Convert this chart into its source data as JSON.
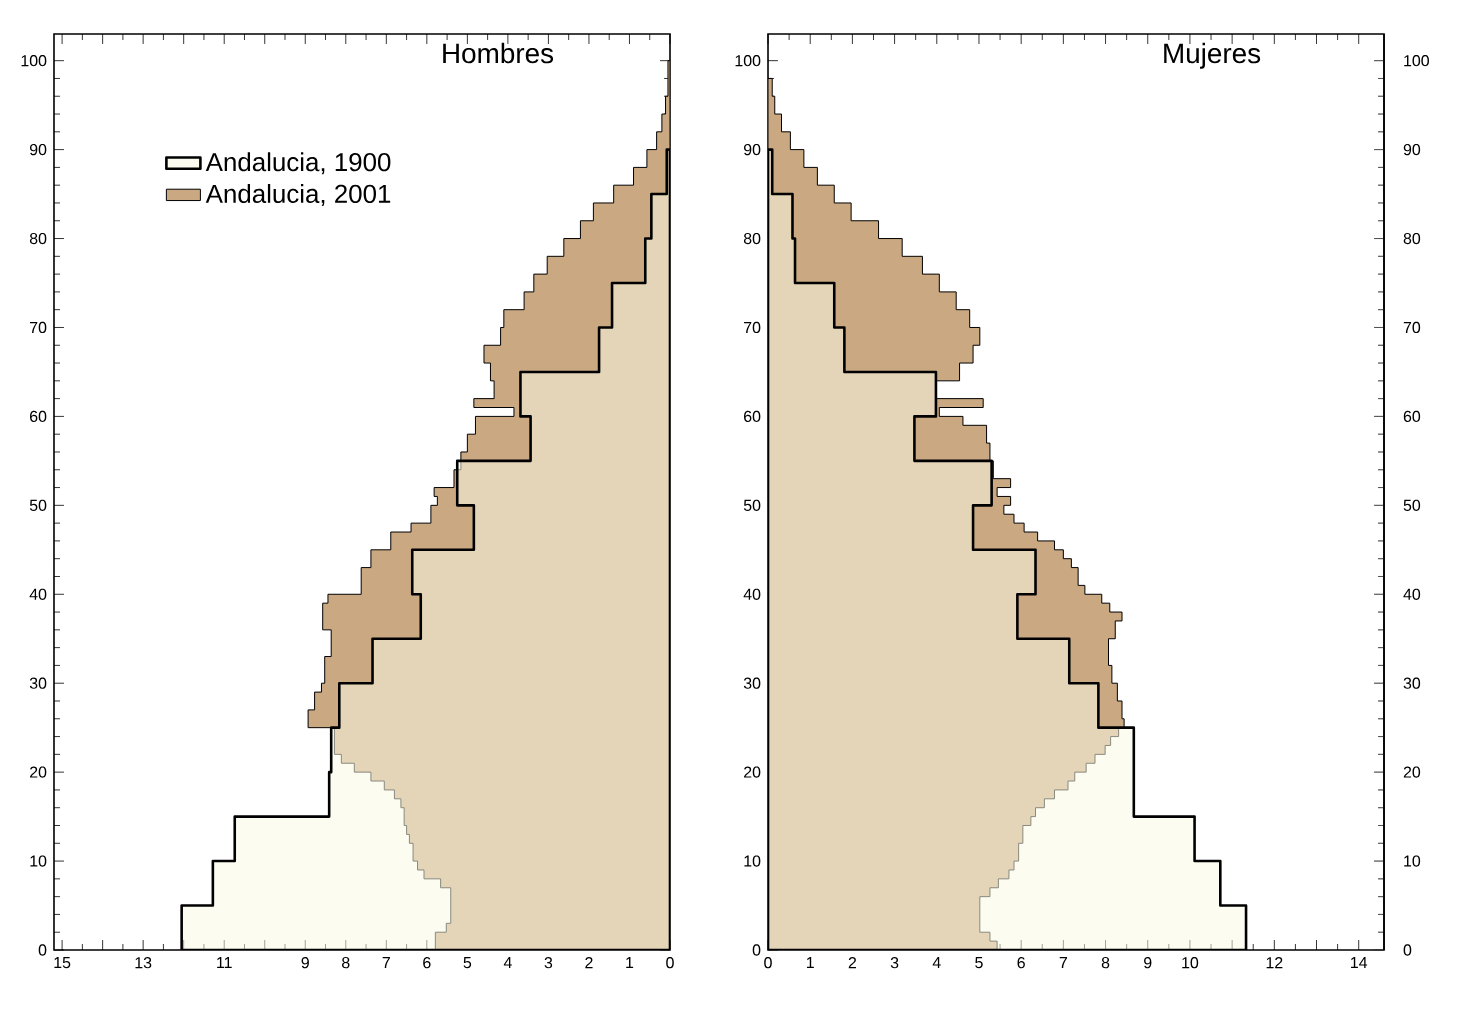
{
  "chart_data": [
    {
      "type": "area",
      "orientation": "horizontal",
      "title": "Hombres",
      "xlim": [
        15.2,
        0
      ],
      "ylim": [
        0,
        103
      ],
      "legend": "top left",
      "xticks": [
        0,
        1,
        2,
        3,
        4,
        5,
        6,
        7,
        8,
        9,
        {
          "value": 10,
          "label": null
        },
        11,
        {
          "value": 12,
          "label": null
        },
        13,
        {
          "value": 14,
          "label": null
        },
        15
      ],
      "yticks": [
        0,
        10,
        20,
        30,
        40,
        50,
        60,
        70,
        80,
        90,
        100
      ],
      "series": [
        {
          "name": "Andalucia, 1900",
          "color": "#fafae6",
          "x": [
            0,
            5,
            10,
            15,
            20,
            25,
            30,
            35,
            40,
            45,
            50,
            55,
            60,
            65,
            70,
            75,
            80,
            85,
            90
          ],
          "values": [
            12.05,
            11.28,
            10.74,
            8.41,
            8.36,
            8.16,
            7.34,
            6.15,
            6.36,
            4.84,
            5.25,
            3.44,
            3.69,
            1.75,
            1.43,
            0.61,
            0.46,
            0.08,
            0
          ]
        },
        {
          "name": "Andalucia, 2001",
          "color": "#c9a882",
          "x": [
            0,
            2,
            3,
            7,
            8,
            9,
            10,
            12,
            13,
            14,
            16,
            17,
            18,
            19,
            20,
            21,
            22,
            25,
            27,
            29,
            30,
            33,
            36,
            39,
            40,
            43,
            45,
            47,
            48,
            50,
            51,
            52,
            54,
            56,
            58,
            60,
            61,
            62,
            64,
            66,
            68,
            70,
            72,
            74,
            76,
            78,
            80,
            82,
            84,
            86,
            88,
            90,
            92,
            94,
            96,
            100
          ],
          "values": [
            5.79,
            5.52,
            5.41,
            5.66,
            6.07,
            6.23,
            6.34,
            6.43,
            6.5,
            6.56,
            6.64,
            6.8,
            7.05,
            7.38,
            7.79,
            8.11,
            8.28,
            8.93,
            8.77,
            8.6,
            8.52,
            8.36,
            8.57,
            8.44,
            7.62,
            7.38,
            6.89,
            6.39,
            5.9,
            5.74,
            5.82,
            5.33,
            5.16,
            5.0,
            4.8,
            3.85,
            4.84,
            4.34,
            4.43,
            4.59,
            4.18,
            4.1,
            3.6,
            3.36,
            3.03,
            2.62,
            2.21,
            1.89,
            1.39,
            0.9,
            0.57,
            0.33,
            0.2,
            0.11,
            0.05,
            0
          ]
        }
      ]
    },
    {
      "type": "area",
      "orientation": "horizontal",
      "title": "Mujeres",
      "xlim": [
        0,
        14.6
      ],
      "ylim": [
        0,
        103
      ],
      "y2lim": [
        0,
        103
      ],
      "xticks": [
        0,
        1,
        2,
        3,
        4,
        5,
        6,
        7,
        8,
        9,
        10,
        {
          "value": 11,
          "label": null
        },
        12,
        {
          "value": 13,
          "label": null
        },
        14
      ],
      "yticks": [
        0,
        10,
        20,
        30,
        40,
        50,
        60,
        70,
        80,
        90,
        100
      ],
      "y2ticks": [
        0,
        10,
        20,
        30,
        40,
        50,
        60,
        70,
        80,
        90,
        100
      ],
      "series": [
        {
          "color": "#fafae6",
          "x": [
            0,
            5,
            10,
            15,
            20,
            25,
            30,
            35,
            40,
            45,
            50,
            55,
            60,
            65,
            70,
            75,
            80,
            85,
            90
          ],
          "values": [
            11.33,
            10.72,
            10.11,
            8.67,
            8.67,
            7.83,
            7.14,
            5.91,
            6.34,
            4.86,
            5.3,
            3.47,
            3.98,
            1.81,
            1.57,
            0.64,
            0.58,
            0.1,
            0
          ]
        },
        {
          "color": "#c9a882",
          "x": [
            0,
            1,
            2,
            6,
            7,
            8,
            9,
            10,
            12,
            14,
            15,
            16,
            17,
            18,
            19,
            20,
            21,
            22,
            23,
            24,
            25,
            26,
            28,
            30,
            32,
            35,
            37,
            38,
            39,
            40,
            41,
            43,
            44,
            45,
            46,
            47,
            48,
            49,
            50,
            51,
            52,
            53,
            55,
            57,
            59,
            60,
            61,
            62,
            64,
            66,
            68,
            70,
            72,
            74,
            76,
            78,
            80,
            82,
            84,
            86,
            88,
            90,
            92,
            94,
            96,
            98
          ],
          "values": [
            5.43,
            5.26,
            5.02,
            5.26,
            5.46,
            5.71,
            5.83,
            5.94,
            6.04,
            6.23,
            6.34,
            6.55,
            6.79,
            7.11,
            7.27,
            7.54,
            7.75,
            7.99,
            8.12,
            8.31,
            8.44,
            8.39,
            8.28,
            8.15,
            8.07,
            8.23,
            8.39,
            8.1,
            7.91,
            7.51,
            7.35,
            7.19,
            7.0,
            6.79,
            6.39,
            6.07,
            5.83,
            5.59,
            5.75,
            5.43,
            5.75,
            5.34,
            5.26,
            5.18,
            4.62,
            4.06,
            5.1,
            3.98,
            4.54,
            4.86,
            5.02,
            4.78,
            4.46,
            4.06,
            3.66,
            3.18,
            2.62,
            1.97,
            1.57,
            1.17,
            0.85,
            0.53,
            0.32,
            0.16,
            0.1,
            0
          ]
        }
      ]
    }
  ]
}
